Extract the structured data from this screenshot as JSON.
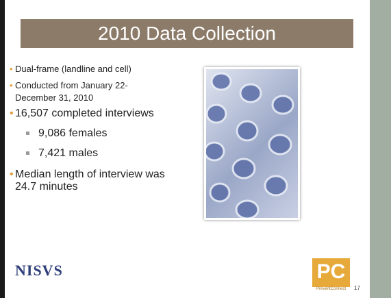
{
  "slide": {
    "title": "2010 Data Collection",
    "bullets": [
      {
        "text": "Dual-frame (landline and cell)"
      },
      {
        "text": "Conducted from January 22-December 31, 2010"
      },
      {
        "text": "16,507 completed interviews",
        "items": [
          "9,086 females",
          "7,421 males"
        ]
      },
      {
        "text": "Median length of interview was 24.7 minutes"
      }
    ],
    "logo_left": "NISVS",
    "logo_right": "PC",
    "logo_right_caption": "PreventConnect",
    "page_number": "17"
  }
}
